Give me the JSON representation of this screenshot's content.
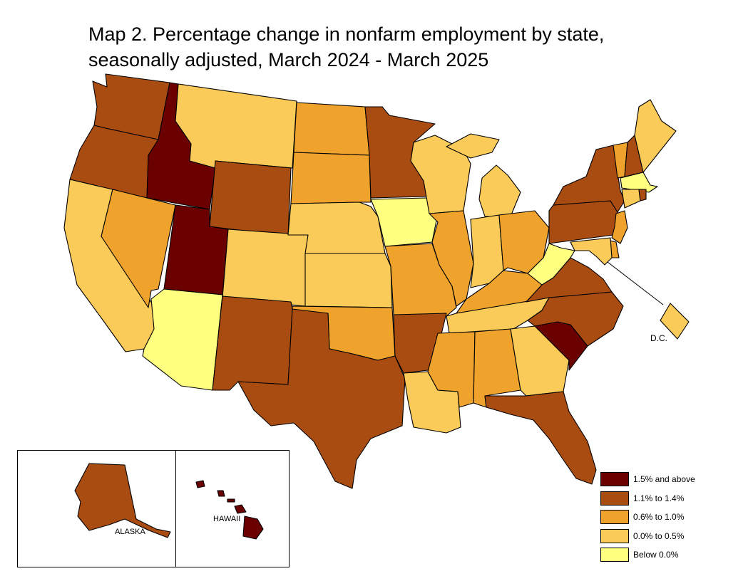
{
  "title": {
    "line1": "Map 2. Percentage change in nonfarm employment by state,",
    "line2": "seasonally adjusted, March 2024 - March 2025"
  },
  "colors": {
    "cat1": "#6b0000",
    "cat2": "#a94c12",
    "cat3": "#efa32d",
    "cat4": "#fbcb59",
    "cat5": "#ffff80",
    "stroke": "#000000"
  },
  "legend": [
    {
      "category": "cat1",
      "label": "1.5% and above"
    },
    {
      "category": "cat2",
      "label": "1.1% to 1.4%"
    },
    {
      "category": "cat3",
      "label": "0.6% to 1.0%"
    },
    {
      "category": "cat4",
      "label": "0.0% to 0.5%"
    },
    {
      "category": "cat5",
      "label": "Below 0.0%"
    }
  ],
  "labels": {
    "alaska": "ALASKA",
    "hawaii": "HAWAII",
    "dc": "D.C."
  },
  "states": {
    "WA": "cat2",
    "OR": "cat2",
    "CA": "cat4",
    "ID": "cat1",
    "NV": "cat3",
    "MT": "cat4",
    "WY": "cat2",
    "UT": "cat1",
    "AZ": "cat5",
    "CO": "cat4",
    "NM": "cat2",
    "ND": "cat3",
    "SD": "cat3",
    "NE": "cat4",
    "KS": "cat4",
    "OK": "cat3",
    "TX": "cat2",
    "MN": "cat2",
    "IA": "cat5",
    "MO": "cat3",
    "AR": "cat2",
    "LA": "cat4",
    "WI": "cat4",
    "IL": "cat3",
    "MI": "cat4",
    "IN": "cat4",
    "OH": "cat3",
    "KY": "cat3",
    "TN": "cat4",
    "MS": "cat3",
    "AL": "cat3",
    "GA": "cat4",
    "FL": "cat2",
    "SC": "cat1",
    "NC": "cat2",
    "VA": "cat2",
    "WV": "cat5",
    "PA": "cat2",
    "NY": "cat2",
    "VT": "cat3",
    "NH": "cat2",
    "ME": "cat4",
    "MA": "cat5",
    "RI": "cat2",
    "CT": "cat4",
    "NJ": "cat3",
    "DE": "cat3",
    "MD": "cat4",
    "DC": "cat4",
    "AK": "cat2",
    "HI": "cat1"
  }
}
